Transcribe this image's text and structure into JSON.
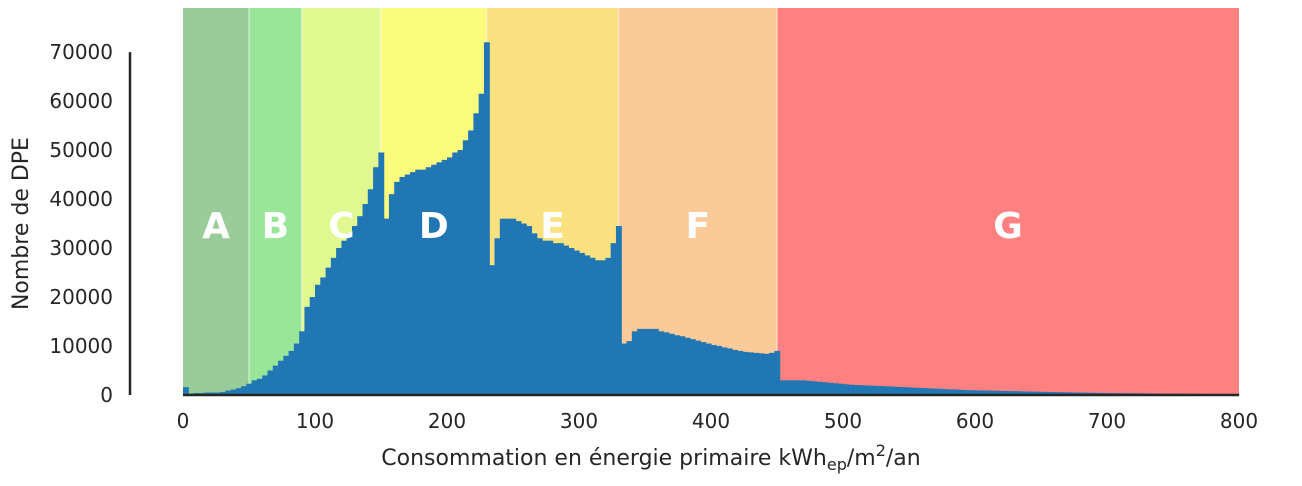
{
  "chart_data": {
    "type": "bar",
    "xlabel": "Consommation en énergie primaire kWh",
    "xlabel_sub": "ep",
    "xlabel_mid": "/m",
    "xlabel_sup": "2",
    "xlabel_end": "/an",
    "ylabel": "Nombre de DPE",
    "xlim": [
      0,
      800
    ],
    "ylim": [
      0,
      79000
    ],
    "x_ticks": [
      0,
      100,
      200,
      300,
      400,
      500,
      600,
      700,
      800
    ],
    "y_ticks": [
      0,
      10000,
      20000,
      30000,
      40000,
      50000,
      60000,
      70000
    ],
    "bar_color": "#2077b4",
    "bin_width": 4,
    "bins": [
      [
        0,
        1600
      ],
      [
        4,
        300
      ],
      [
        8,
        400
      ],
      [
        12,
        400
      ],
      [
        16,
        500
      ],
      [
        20,
        500
      ],
      [
        24,
        500
      ],
      [
        28,
        600
      ],
      [
        32,
        900
      ],
      [
        36,
        1100
      ],
      [
        40,
        1400
      ],
      [
        44,
        1800
      ],
      [
        48,
        2300
      ],
      [
        52,
        3000
      ],
      [
        56,
        3300
      ],
      [
        60,
        4000
      ],
      [
        64,
        5000
      ],
      [
        68,
        6000
      ],
      [
        72,
        7000
      ],
      [
        76,
        8000
      ],
      [
        80,
        9000
      ],
      [
        84,
        10500
      ],
      [
        88,
        13000
      ],
      [
        92,
        18000
      ],
      [
        96,
        20000
      ],
      [
        100,
        22500
      ],
      [
        104,
        24000
      ],
      [
        108,
        26000
      ],
      [
        112,
        28000
      ],
      [
        116,
        30000
      ],
      [
        120,
        31500
      ],
      [
        124,
        33000
      ],
      [
        128,
        34500
      ],
      [
        132,
        36500
      ],
      [
        136,
        39000
      ],
      [
        140,
        42000
      ],
      [
        144,
        46500
      ],
      [
        148,
        49500
      ],
      [
        152,
        36000
      ],
      [
        156,
        41000
      ],
      [
        160,
        43500
      ],
      [
        164,
        44500
      ],
      [
        168,
        45000
      ],
      [
        172,
        45500
      ],
      [
        176,
        46000
      ],
      [
        180,
        46000
      ],
      [
        184,
        46500
      ],
      [
        188,
        47000
      ],
      [
        192,
        47500
      ],
      [
        196,
        48000
      ],
      [
        200,
        48500
      ],
      [
        204,
        49500
      ],
      [
        208,
        50000
      ],
      [
        212,
        52000
      ],
      [
        216,
        54000
      ],
      [
        220,
        57500
      ],
      [
        224,
        61500
      ],
      [
        228,
        72000
      ],
      [
        232,
        26500
      ],
      [
        236,
        32000
      ],
      [
        240,
        36000
      ],
      [
        244,
        36000
      ],
      [
        248,
        36000
      ],
      [
        252,
        35500
      ],
      [
        256,
        35000
      ],
      [
        260,
        34500
      ],
      [
        264,
        33000
      ],
      [
        268,
        32000
      ],
      [
        272,
        31500
      ],
      [
        276,
        31500
      ],
      [
        280,
        31000
      ],
      [
        284,
        31000
      ],
      [
        288,
        30500
      ],
      [
        292,
        30000
      ],
      [
        296,
        29500
      ],
      [
        300,
        29000
      ],
      [
        304,
        28500
      ],
      [
        308,
        28000
      ],
      [
        312,
        27500
      ],
      [
        316,
        27500
      ],
      [
        320,
        28000
      ],
      [
        324,
        31000
      ],
      [
        328,
        34500
      ],
      [
        332,
        10500
      ],
      [
        336,
        11000
      ],
      [
        340,
        13000
      ],
      [
        344,
        13500
      ],
      [
        348,
        13500
      ],
      [
        352,
        13500
      ],
      [
        356,
        13500
      ],
      [
        360,
        13000
      ],
      [
        364,
        12800
      ],
      [
        368,
        12500
      ],
      [
        372,
        12200
      ],
      [
        376,
        12000
      ],
      [
        380,
        11700
      ],
      [
        384,
        11400
      ],
      [
        388,
        11100
      ],
      [
        392,
        10800
      ],
      [
        396,
        10500
      ],
      [
        400,
        10200
      ],
      [
        404,
        10000
      ],
      [
        408,
        9700
      ],
      [
        412,
        9500
      ],
      [
        416,
        9200
      ],
      [
        420,
        9000
      ],
      [
        424,
        8800
      ],
      [
        428,
        8700
      ],
      [
        432,
        8600
      ],
      [
        436,
        8500
      ],
      [
        440,
        8400
      ],
      [
        444,
        8600
      ],
      [
        448,
        9000
      ],
      [
        452,
        3000
      ],
      [
        456,
        3000
      ],
      [
        460,
        3000
      ],
      [
        464,
        3000
      ],
      [
        468,
        3000
      ],
      [
        472,
        2900
      ],
      [
        476,
        2800
      ],
      [
        480,
        2700
      ],
      [
        484,
        2600
      ],
      [
        488,
        2500
      ],
      [
        492,
        2400
      ],
      [
        496,
        2300
      ],
      [
        500,
        2200
      ],
      [
        504,
        2100
      ],
      [
        508,
        2050
      ],
      [
        512,
        2000
      ],
      [
        516,
        1950
      ],
      [
        520,
        1900
      ],
      [
        524,
        1850
      ],
      [
        528,
        1800
      ],
      [
        532,
        1750
      ],
      [
        536,
        1700
      ],
      [
        540,
        1650
      ],
      [
        544,
        1600
      ],
      [
        548,
        1550
      ],
      [
        552,
        1500
      ],
      [
        556,
        1450
      ],
      [
        560,
        1400
      ],
      [
        564,
        1350
      ],
      [
        568,
        1300
      ],
      [
        572,
        1250
      ],
      [
        576,
        1200
      ],
      [
        580,
        1150
      ],
      [
        584,
        1100
      ],
      [
        588,
        1050
      ],
      [
        592,
        1000
      ],
      [
        596,
        980
      ],
      [
        600,
        950
      ],
      [
        604,
        930
      ],
      [
        608,
        900
      ],
      [
        612,
        880
      ],
      [
        616,
        850
      ],
      [
        620,
        830
      ],
      [
        624,
        800
      ],
      [
        628,
        780
      ],
      [
        632,
        750
      ],
      [
        636,
        720
      ],
      [
        640,
        700
      ],
      [
        644,
        680
      ],
      [
        648,
        650
      ],
      [
        652,
        630
      ],
      [
        656,
        600
      ],
      [
        660,
        580
      ],
      [
        664,
        560
      ],
      [
        668,
        540
      ],
      [
        672,
        520
      ],
      [
        676,
        500
      ],
      [
        680,
        480
      ],
      [
        684,
        460
      ],
      [
        688,
        440
      ],
      [
        692,
        420
      ],
      [
        696,
        400
      ],
      [
        700,
        390
      ],
      [
        704,
        380
      ],
      [
        708,
        370
      ],
      [
        712,
        360
      ],
      [
        716,
        350
      ],
      [
        720,
        340
      ],
      [
        724,
        330
      ],
      [
        728,
        320
      ],
      [
        732,
        310
      ],
      [
        736,
        300
      ],
      [
        740,
        290
      ],
      [
        744,
        280
      ],
      [
        748,
        270
      ],
      [
        752,
        260
      ],
      [
        756,
        250
      ],
      [
        760,
        240
      ],
      [
        764,
        230
      ],
      [
        768,
        220
      ],
      [
        772,
        210
      ],
      [
        776,
        200
      ],
      [
        780,
        190
      ],
      [
        784,
        180
      ],
      [
        788,
        170
      ],
      [
        792,
        160
      ],
      [
        796,
        150
      ]
    ],
    "bands": [
      {
        "label": "A",
        "from": 0,
        "to": 50,
        "color": "#99cc99"
      },
      {
        "label": "B",
        "from": 50,
        "to": 90,
        "color": "#99e699"
      },
      {
        "label": "C",
        "from": 90,
        "to": 150,
        "color": "#e0f88f"
      },
      {
        "label": "D",
        "from": 150,
        "to": 230,
        "color": "#fbfb7e"
      },
      {
        "label": "E",
        "from": 230,
        "to": 330,
        "color": "#fae180"
      },
      {
        "label": "F",
        "from": 330,
        "to": 450,
        "color": "#fcca99"
      },
      {
        "label": "G",
        "from": 450,
        "to": 800,
        "color": "#ff8080"
      }
    ],
    "band_label_y": 34500
  }
}
